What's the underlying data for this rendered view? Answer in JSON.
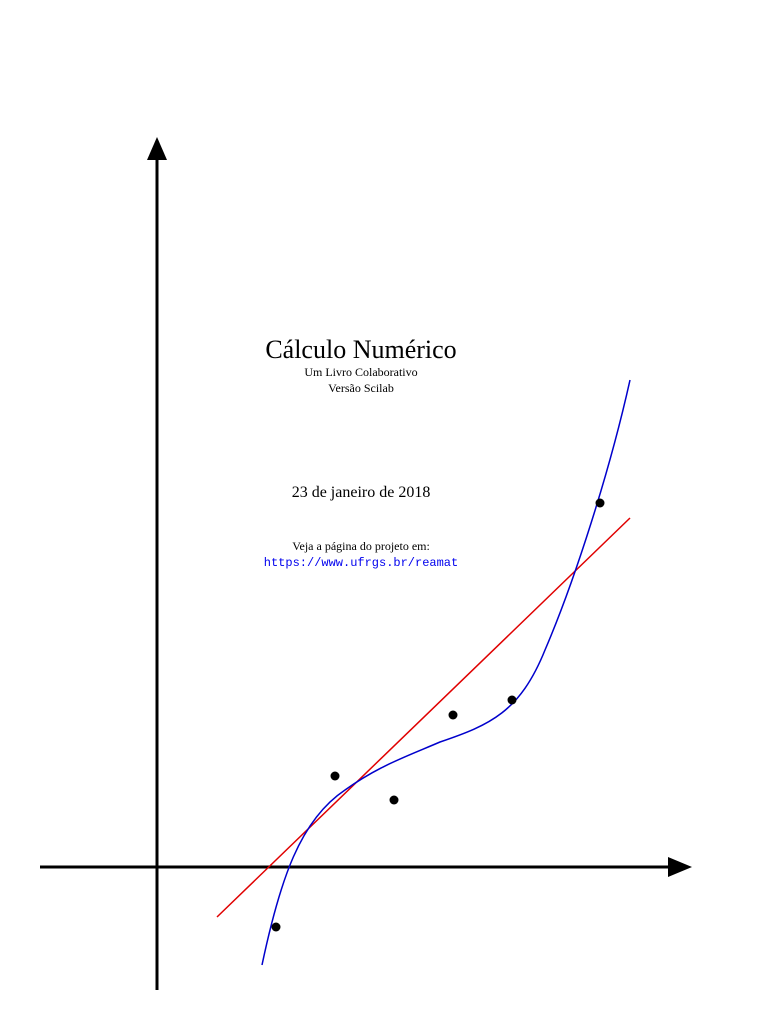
{
  "cover": {
    "title": "Cálculo Numérico",
    "subtitle": "Um Livro Colaborativo",
    "version": "Versão Scilab",
    "date": "23 de janeiro de 2018",
    "project_text": "Veja a página do projeto em:",
    "project_url": "https://www.ufrgs.br/reamat"
  }
}
